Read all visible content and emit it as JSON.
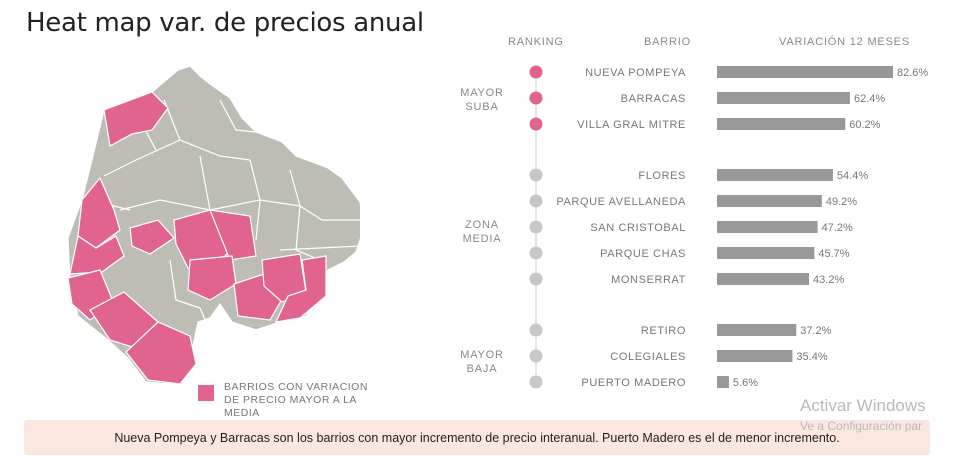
{
  "title": "Heat map var. de precios anual",
  "legend": {
    "label": "BARRIOS CON VARIACION DE PRECIO MAYOR A LA MEDIA",
    "color": "#e0648f"
  },
  "headers": {
    "ranking": "RANKING",
    "barrio": "BARRIO",
    "variacion": "VARIACIÓN 12 MESES"
  },
  "groups": {
    "mayor_suba": [
      "MAYOR",
      "SUBA"
    ],
    "zona_media": [
      "ZONA",
      "MEDIA"
    ],
    "mayor_baja": [
      "MAYOR",
      "BAJA"
    ]
  },
  "footer": "Nueva Pompeya y Barracas son los barrios con mayor incremento de precio interanual. Puerto Madero es el de menor incremento.",
  "watermark": {
    "line1": "Activar Windows",
    "line2": "Ve a Configuración par"
  },
  "colors": {
    "highlight": "#e0648f",
    "neutral": "#c8c8c8",
    "map_base": "#bdbdb5",
    "bar": "#989898"
  },
  "chart_data": {
    "type": "bar",
    "orientation": "horizontal",
    "categories": [
      "NUEVA POMPEYA",
      "BARRACAS",
      "VILLA GRAL MITRE",
      "FLORES",
      "PARQUE AVELLANEDA",
      "SAN CRISTOBAL",
      "PARQUE CHAS",
      "MONSERRAT",
      "RETIRO",
      "COLEGIALES",
      "PUERTO MADERO"
    ],
    "values": [
      82.6,
      62.4,
      60.2,
      54.4,
      49.2,
      47.2,
      45.7,
      43.2,
      37.2,
      35.4,
      5.6
    ],
    "labels": [
      "82.6%",
      "62.4%",
      "60.2%",
      "54.4%",
      "49.2%",
      "47.2%",
      "45.7%",
      "43.2%",
      "37.2%",
      "35.4%",
      "5.6%"
    ],
    "groups": [
      "MAYOR SUBA",
      "MAYOR SUBA",
      "MAYOR SUBA",
      "ZONA MEDIA",
      "ZONA MEDIA",
      "ZONA MEDIA",
      "ZONA MEDIA",
      "ZONA MEDIA",
      "MAYOR BAJA",
      "MAYOR BAJA",
      "MAYOR BAJA"
    ],
    "xlim": [
      0,
      100
    ],
    "grid": false
  }
}
